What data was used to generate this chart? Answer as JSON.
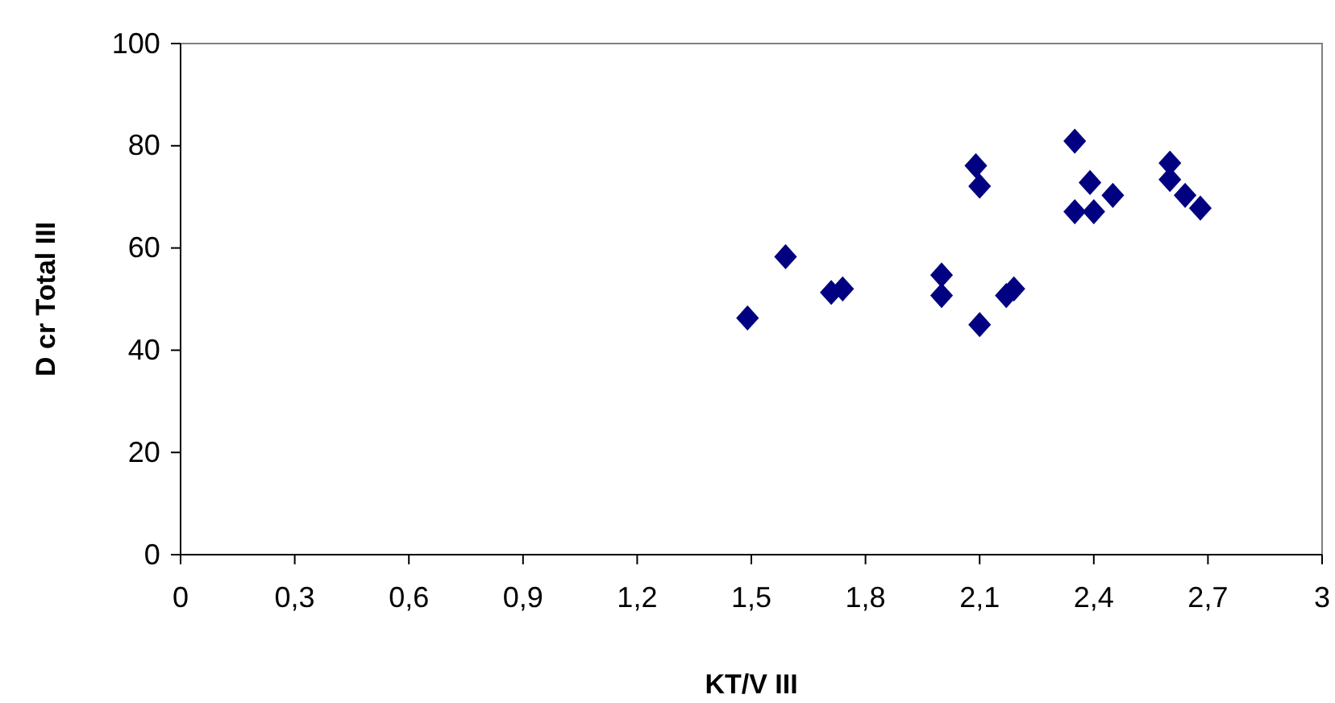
{
  "chart_data": {
    "type": "scatter",
    "xlabel": "KT/V III",
    "ylabel": "D cr Total III",
    "marker": "diamond",
    "grid": false,
    "xlim": [
      0,
      3
    ],
    "xticks": [
      0,
      {
        "value": 0.3,
        "label": "0,3"
      },
      {
        "value": 0.6,
        "label": "0,6"
      },
      {
        "value": 0.9,
        "label": "0,9"
      },
      {
        "value": 1.2,
        "label": "1,2"
      },
      {
        "value": 1.5,
        "label": "1,5"
      },
      {
        "value": 1.8,
        "label": "1,8"
      },
      {
        "value": 2.1,
        "label": "2,1"
      },
      {
        "value": 2.4,
        "label": "2,4"
      },
      {
        "value": 2.7,
        "label": "2,7"
      },
      3
    ],
    "ylim": [
      0,
      100
    ],
    "yticks": [
      0,
      20,
      40,
      60,
      80,
      100
    ],
    "series": [
      {
        "color": "#000080",
        "x": [
          1.49,
          1.59,
          1.71,
          1.74,
          2.0,
          2.0,
          2.09,
          2.1,
          2.1,
          2.17,
          2.19,
          2.35,
          2.35,
          2.39,
          2.4,
          2.45,
          2.6,
          2.6,
          2.64,
          2.68
        ],
        "values": [
          46.3,
          58.3,
          51.3,
          52.0,
          54.7,
          50.7,
          76.1,
          72.1,
          45.0,
          50.7,
          52.0,
          80.9,
          67.1,
          72.8,
          67.1,
          70.3,
          76.6,
          73.4,
          70.3,
          67.8
        ]
      }
    ]
  }
}
